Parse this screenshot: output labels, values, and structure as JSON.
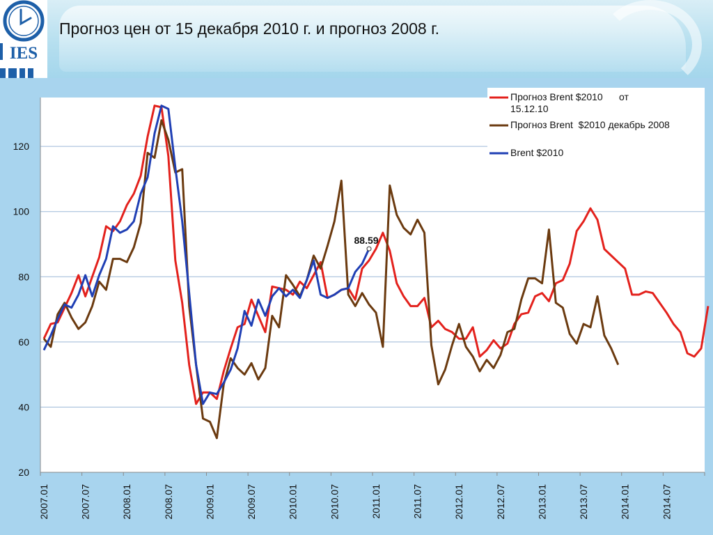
{
  "slide": {
    "title": "Прогноз цен от 15 декабря 2010 г. и прогноз 2008 г."
  },
  "logo": {
    "text": "IES"
  },
  "colors": {
    "forecast_2010": "#e3211c",
    "forecast_2008": "#6b3a0f",
    "actual": "#1f3fb4",
    "logo_blue": "#1d5fa8"
  },
  "chart_data": {
    "type": "line",
    "title": "",
    "xlabel": "",
    "ylabel": "",
    "ylim": [
      20,
      135
    ],
    "yticks": [
      20,
      40,
      60,
      80,
      100,
      120
    ],
    "x_start": "2007.01",
    "x_end": "2014.12",
    "xticks": [
      "2007.01",
      "2007.07",
      "2008.01",
      "2008.07",
      "2009.01",
      "2009.07",
      "2010.01",
      "2010.07",
      "2011.01",
      "2011.07",
      "2012.01",
      "2012.07",
      "2013.01",
      "2013.07",
      "2014.01",
      "2014.07"
    ],
    "grid": "horizontal",
    "legend": "top-right",
    "annotation": {
      "label": "88.59",
      "series": "Brent $2010",
      "x": "2010.12",
      "y": 88.59
    },
    "series": [
      {
        "name": "Прогноз Brent $2010      от 15.12.10",
        "color_key": "forecast_2010",
        "x_start": "2007.01",
        "values": [
          61,
          65.5,
          66,
          70.5,
          75,
          80.5,
          74,
          80,
          86,
          95.5,
          94,
          97,
          102,
          105.5,
          111,
          123,
          132.5,
          132,
          117,
          85,
          72,
          53,
          41,
          44.5,
          44.5,
          42.5,
          51,
          58,
          64.5,
          65.5,
          73,
          68,
          63,
          77,
          76.5,
          76,
          74.5,
          78.5,
          76.5,
          80.5,
          84.5,
          73.5,
          74.5,
          76,
          76.5,
          73,
          82.5,
          85,
          88.59,
          93.5,
          88,
          78,
          74,
          71,
          71,
          73.5,
          64.5,
          66.5,
          64,
          63,
          61,
          61,
          64.5,
          55.5,
          57.5,
          60.5,
          58,
          59.5,
          65.5,
          68.5,
          69,
          74,
          75,
          72.5,
          78,
          79,
          84,
          94,
          97,
          101,
          97.5,
          88.5,
          86.5,
          84.5,
          82.5,
          74.5,
          74.5,
          75.5,
          75,
          72,
          69,
          65.5,
          63,
          56.5,
          55.5,
          58,
          71
        ]
      },
      {
        "name": "Прогноз Brent  $2010 декабрь 2008",
        "color_key": "forecast_2008",
        "x_start": "2007.01",
        "values": [
          61,
          58.5,
          68.5,
          72,
          67.5,
          64,
          66,
          71,
          78.5,
          76,
          85.5,
          85.5,
          84.5,
          89,
          96.5,
          118,
          116.5,
          128,
          122,
          112,
          113,
          71,
          53,
          36.5,
          35.5,
          30.5,
          47,
          55,
          52,
          50,
          53.5,
          48.5,
          52,
          68,
          64.5,
          80.5,
          77.5,
          74,
          79,
          86.5,
          82.5,
          89.5,
          97,
          109.5,
          74.5,
          71,
          75,
          71.5,
          69,
          58.5,
          108,
          99,
          95,
          93,
          97.5,
          93.5,
          59,
          47,
          51.5,
          59,
          65.5,
          58.5,
          55.5,
          51,
          54.5,
          52,
          56,
          63,
          64,
          73,
          79.5,
          79.5,
          78,
          94.5,
          72,
          70.5,
          62.5,
          59.5,
          65.5,
          64.5,
          74,
          62,
          58,
          53
        ]
      },
      {
        "name": "Brent $2010",
        "color_key": "actual",
        "x_start": "2007.01",
        "values": [
          57.5,
          62,
          67,
          71.5,
          70.5,
          74.5,
          80.5,
          74,
          80.5,
          85.5,
          95.5,
          93.5,
          94.5,
          97,
          105.5,
          110.5,
          124,
          132.5,
          131.5,
          113.5,
          97,
          75,
          53,
          41,
          44.5,
          44,
          47.5,
          51.5,
          58,
          69.5,
          65,
          73,
          68,
          74,
          76.5,
          74,
          76,
          73.5,
          79,
          85,
          74.5,
          73.5,
          74.5,
          76,
          76.5,
          81.5,
          84,
          88.59
        ]
      }
    ]
  }
}
